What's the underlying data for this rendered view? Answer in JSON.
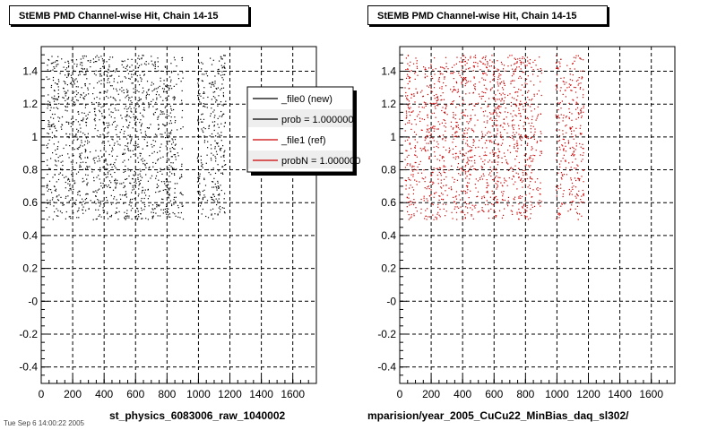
{
  "panels": [
    {
      "title": "StEMB PMD Channel-wise Hit, Chain 14-15",
      "footer": "st_physics_6083006_raw_1040002",
      "point_color": "#000000"
    },
    {
      "title": "StEMB PMD Channel-wise Hit, Chain 14-15",
      "footer": "mparision/year_2005_CuCu22_MinBias_daq_sl302/",
      "point_color": "#cc0000"
    }
  ],
  "legend": {
    "entries": [
      {
        "label": "_file0 (new)",
        "color": "#000000"
      },
      {
        "label": "prob = 1.000000",
        "color": "#000000"
      },
      {
        "label": "_file1 (ref)",
        "color": "#cc0000"
      },
      {
        "label": "probN = 1.000000",
        "color": "#cc0000"
      }
    ]
  },
  "corner_note": "Tue Sep  6 14:00:22 2005",
  "chart_data": [
    {
      "type": "scatter",
      "title": "StEMB PMD Channel-wise Hit, Chain 14-15",
      "xlabel": "",
      "ylabel": "",
      "xlim": [
        0,
        1750
      ],
      "ylim": [
        -0.5,
        1.55
      ],
      "xticks": [
        0,
        200,
        400,
        600,
        800,
        1000,
        1200,
        1400,
        1600
      ],
      "yticks": [
        -0.4,
        -0.2,
        0,
        0.2,
        0.4,
        0.6,
        0.8,
        1,
        1.2,
        1.4
      ],
      "ytick_labels": [
        "-0.4",
        "-0.2",
        "-0",
        "0.2",
        "0.4",
        "0.6",
        "0.8",
        "1",
        "1.2",
        "1.4"
      ],
      "grid": true,
      "legend_position": "top-right",
      "series": [
        {
          "name": "_file0 (new)",
          "color": "#000000",
          "regions": [
            {
              "x": [
                30,
                900
              ],
              "y": [
                0.5,
                1.5
              ]
            },
            {
              "x": [
                990,
                1170
              ],
              "y": [
                0.5,
                1.5
              ]
            }
          ]
        }
      ]
    },
    {
      "type": "scatter",
      "title": "StEMB PMD Channel-wise Hit, Chain 14-15",
      "xlabel": "",
      "ylabel": "",
      "xlim": [
        0,
        1750
      ],
      "ylim": [
        -0.5,
        1.55
      ],
      "xticks": [
        0,
        200,
        400,
        600,
        800,
        1000,
        1200,
        1400,
        1600
      ],
      "yticks": [
        -0.4,
        -0.2,
        0,
        0.2,
        0.4,
        0.6,
        0.8,
        1,
        1.2,
        1.4
      ],
      "ytick_labels": [
        "-0.4",
        "-0.2",
        "-0",
        "0.2",
        "0.4",
        "0.6",
        "0.8",
        "1",
        "1.2",
        "1.4"
      ],
      "grid": true,
      "series": [
        {
          "name": "_file1 (ref)",
          "color": "#cc0000",
          "regions": [
            {
              "x": [
                30,
                900
              ],
              "y": [
                0.5,
                1.5
              ]
            },
            {
              "x": [
                990,
                1170
              ],
              "y": [
                0.5,
                1.5
              ]
            }
          ]
        }
      ]
    }
  ]
}
